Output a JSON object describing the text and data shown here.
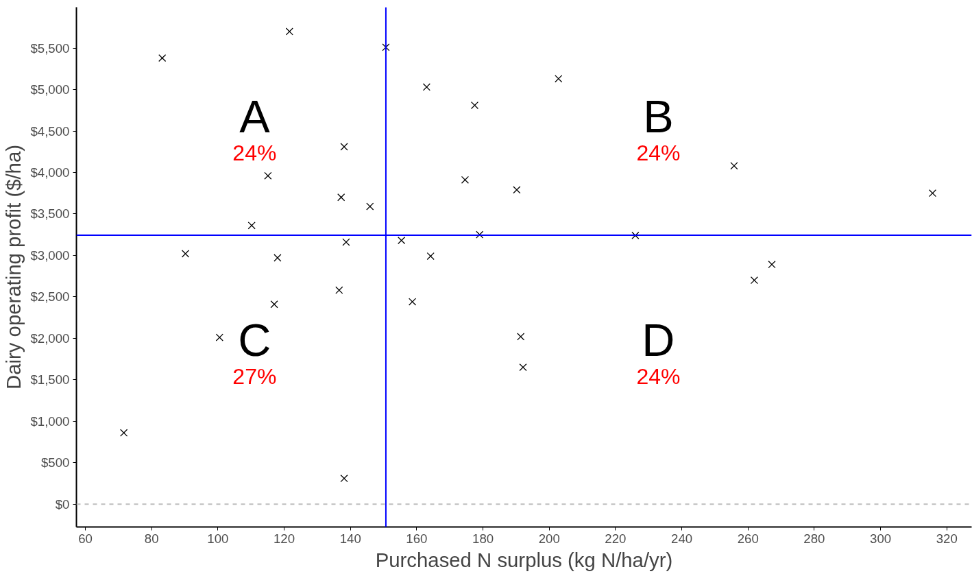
{
  "chart_data": {
    "type": "scatter",
    "xlabel": "Purchased N surplus (kg N/ha/yr)",
    "ylabel": "Dairy operating profit ($/ha)",
    "x": [
      71.6,
      83.2,
      121.6,
      150.7,
      90.2,
      100.5,
      110.2,
      115.1,
      118.0,
      117.0,
      138.1,
      137.2,
      145.9,
      138.7,
      136.6,
      138.1,
      163.0,
      177.5,
      174.6,
      155.4,
      164.2,
      158.7,
      179.0,
      190.2,
      202.8,
      191.4,
      192.1,
      226.0,
      255.8,
      261.9,
      267.2,
      315.7
    ],
    "series": [
      {
        "color": "#000000",
        "values": [
          860,
          5380,
          5700,
          5510,
          3020,
          2010,
          3360,
          3960,
          2970,
          2410,
          4310,
          3700,
          3590,
          3160,
          2580,
          310,
          5030,
          4810,
          3910,
          3180,
          2990,
          2440,
          3250,
          3790,
          5130,
          2020,
          1650,
          3240,
          4080,
          2700,
          2890,
          3750
        ]
      }
    ],
    "marker": "cross",
    "grid": false,
    "xlim": [
      57.3,
      327.5
    ],
    "ylim": [
      -276,
      5993
    ],
    "xticks": [
      60,
      80,
      100,
      120,
      140,
      160,
      180,
      200,
      220,
      240,
      260,
      280,
      300,
      320
    ],
    "yticks": [
      {
        "value": 0,
        "label": "$0"
      },
      {
        "value": 500,
        "label": "$500"
      },
      {
        "value": 1000,
        "label": "$1,000"
      },
      {
        "value": 1500,
        "label": "$1,500"
      },
      {
        "value": 2000,
        "label": "$2,000"
      },
      {
        "value": 2500,
        "label": "$2,500"
      },
      {
        "value": 3000,
        "label": "$3,000"
      },
      {
        "value": 3500,
        "label": "$3,500"
      },
      {
        "value": 4000,
        "label": "$4,000"
      },
      {
        "value": 4500,
        "label": "$4,500"
      },
      {
        "value": 5000,
        "label": "$5,000"
      },
      {
        "value": 5500,
        "label": "$5,500"
      }
    ],
    "ref_lines": [
      {
        "axis": "x",
        "value": 150.7,
        "color": "#0000ff",
        "line_style": "solid"
      },
      {
        "axis": "y",
        "value": 3243,
        "color": "#0000ff",
        "line_style": "solid"
      },
      {
        "axis": "y",
        "value": 0,
        "color": "#bebebe",
        "line_style": "dashed"
      }
    ],
    "annotations": [
      "A",
      "24%",
      "B",
      "24%",
      "C",
      "27%",
      "D",
      "24%"
    ]
  }
}
